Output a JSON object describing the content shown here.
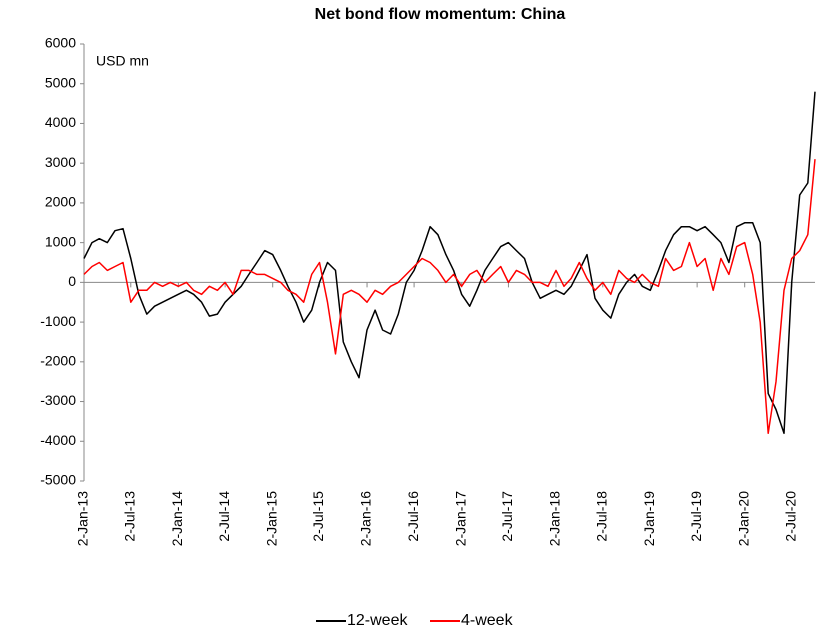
{
  "chart_data": {
    "type": "line",
    "title": "Net bond flow momentum: China",
    "unit_label": "USD mn",
    "x": [
      "2013-01-02",
      "2013-02-02",
      "2013-03-02",
      "2013-04-02",
      "2013-05-02",
      "2013-06-02",
      "2013-07-02",
      "2013-08-02",
      "2013-09-02",
      "2013-10-02",
      "2013-11-02",
      "2013-12-02",
      "2014-01-02",
      "2014-02-02",
      "2014-03-02",
      "2014-04-02",
      "2014-05-02",
      "2014-06-02",
      "2014-07-02",
      "2014-08-02",
      "2014-09-02",
      "2014-10-02",
      "2014-11-02",
      "2014-12-02",
      "2015-01-02",
      "2015-02-02",
      "2015-03-02",
      "2015-04-02",
      "2015-05-02",
      "2015-06-02",
      "2015-07-02",
      "2015-08-02",
      "2015-09-02",
      "2015-10-02",
      "2015-11-02",
      "2015-12-02",
      "2016-01-02",
      "2016-02-02",
      "2016-03-02",
      "2016-04-02",
      "2016-05-02",
      "2016-06-02",
      "2016-07-02",
      "2016-08-02",
      "2016-09-02",
      "2016-10-02",
      "2016-11-02",
      "2016-12-02",
      "2017-01-02",
      "2017-02-02",
      "2017-03-02",
      "2017-04-02",
      "2017-05-02",
      "2017-06-02",
      "2017-07-02",
      "2017-08-02",
      "2017-09-02",
      "2017-10-02",
      "2017-11-02",
      "2017-12-02",
      "2018-01-02",
      "2018-02-02",
      "2018-03-02",
      "2018-04-02",
      "2018-05-02",
      "2018-06-02",
      "2018-07-02",
      "2018-08-02",
      "2018-09-02",
      "2018-10-02",
      "2018-11-02",
      "2018-12-02",
      "2019-01-02",
      "2019-02-02",
      "2019-03-02",
      "2019-04-02",
      "2019-05-02",
      "2019-06-02",
      "2019-07-02",
      "2019-08-02",
      "2019-09-02",
      "2019-10-02",
      "2019-11-02",
      "2019-12-02",
      "2020-01-02",
      "2020-02-02",
      "2020-03-02",
      "2020-04-02",
      "2020-05-02",
      "2020-06-02",
      "2020-07-02",
      "2020-08-02",
      "2020-09-02",
      "2020-09-30"
    ],
    "series": [
      {
        "name": "12-week",
        "color": "#000000",
        "values": [
          600,
          1000,
          1100,
          1000,
          1300,
          1350,
          600,
          -300,
          -800,
          -600,
          -500,
          -400,
          -300,
          -200,
          -300,
          -500,
          -850,
          -800,
          -500,
          -300,
          -100,
          200,
          500,
          800,
          700,
          300,
          -100,
          -500,
          -1000,
          -700,
          0,
          500,
          300,
          -1500,
          -2000,
          -2400,
          -1200,
          -700,
          -1200,
          -1300,
          -800,
          0,
          300,
          800,
          1400,
          1200,
          700,
          300,
          -300,
          -600,
          -200,
          300,
          600,
          900,
          1000,
          800,
          600,
          0,
          -400,
          -300,
          -200,
          -300,
          -100,
          300,
          700,
          -400,
          -700,
          -900,
          -300,
          0,
          200,
          -100,
          -200,
          300,
          800,
          1200,
          1400,
          1400,
          1300,
          1400,
          1200,
          1000,
          500,
          1400,
          1500,
          1500,
          1000,
          -2800,
          -3200,
          -3800,
          0,
          2200,
          2500,
          4800
        ]
      },
      {
        "name": "4-week",
        "color": "#ff0000",
        "values": [
          200,
          400,
          500,
          300,
          400,
          500,
          -500,
          -200,
          -200,
          0,
          -100,
          0,
          -100,
          0,
          -200,
          -300,
          -100,
          -200,
          0,
          -300,
          300,
          300,
          200,
          200,
          100,
          0,
          -200,
          -300,
          -500,
          200,
          500,
          -500,
          -1800,
          -300,
          -200,
          -300,
          -500,
          -200,
          -300,
          -100,
          0,
          200,
          400,
          600,
          500,
          300,
          0,
          200,
          -100,
          200,
          300,
          0,
          200,
          400,
          0,
          300,
          200,
          0,
          0,
          -100,
          300,
          -100,
          100,
          500,
          100,
          -200,
          0,
          -300,
          300,
          100,
          0,
          200,
          0,
          -100,
          600,
          300,
          400,
          1000,
          400,
          600,
          -200,
          600,
          200,
          900,
          1000,
          200,
          -1000,
          -3800,
          -2500,
          -200,
          600,
          800,
          1200,
          3100
        ]
      }
    ],
    "xlim": [
      "2013-01-02",
      "2020-09-30"
    ],
    "xticks": [
      {
        "value": "2013-01-02",
        "label": "2-Jan-13"
      },
      {
        "value": "2013-07-02",
        "label": "2-Jul-13"
      },
      {
        "value": "2014-01-02",
        "label": "2-Jan-14"
      },
      {
        "value": "2014-07-02",
        "label": "2-Jul-14"
      },
      {
        "value": "2015-01-02",
        "label": "2-Jan-15"
      },
      {
        "value": "2015-07-02",
        "label": "2-Jul-15"
      },
      {
        "value": "2016-01-02",
        "label": "2-Jan-16"
      },
      {
        "value": "2016-07-02",
        "label": "2-Jul-16"
      },
      {
        "value": "2017-01-02",
        "label": "2-Jan-17"
      },
      {
        "value": "2017-07-02",
        "label": "2-Jul-17"
      },
      {
        "value": "2018-01-02",
        "label": "2-Jan-18"
      },
      {
        "value": "2018-07-02",
        "label": "2-Jul-18"
      },
      {
        "value": "2019-01-02",
        "label": "2-Jan-19"
      },
      {
        "value": "2019-07-02",
        "label": "2-Jul-19"
      },
      {
        "value": "2020-01-02",
        "label": "2-Jan-20"
      },
      {
        "value": "2020-07-02",
        "label": "2-Jul-20"
      }
    ],
    "ylim": [
      -5000,
      6000
    ],
    "yticks": [
      -5000,
      -4000,
      -3000,
      -2000,
      -1000,
      0,
      1000,
      2000,
      3000,
      4000,
      5000,
      6000
    ],
    "grid": false,
    "legend": "bottom"
  }
}
